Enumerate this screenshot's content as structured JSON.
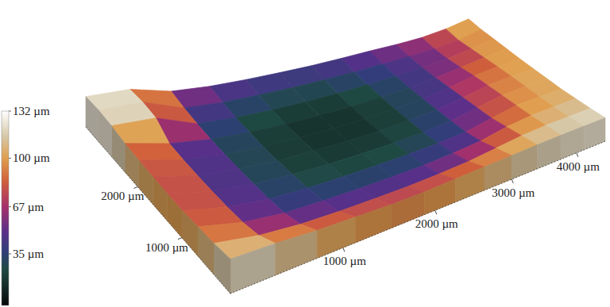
{
  "chart_data": {
    "type": "surface",
    "x": [
      0,
      375,
      750,
      1125,
      1500,
      1875,
      2250,
      2625,
      3000,
      3375,
      3750,
      4125,
      4500
    ],
    "y": [
      0,
      330,
      660,
      990,
      1320,
      1650,
      1980,
      2310,
      2640,
      2970,
      3300
    ],
    "z": [
      [
        120,
        115,
        105,
        100,
        95,
        95,
        100,
        105,
        110,
        115,
        118,
        120,
        122
      ],
      [
        110,
        80,
        65,
        60,
        58,
        58,
        62,
        70,
        85,
        100,
        108,
        112,
        115
      ],
      [
        105,
        65,
        45,
        40,
        38,
        38,
        40,
        48,
        60,
        85,
        100,
        105,
        110
      ],
      [
        100,
        60,
        38,
        30,
        28,
        28,
        30,
        35,
        45,
        70,
        95,
        100,
        105
      ],
      [
        100,
        58,
        35,
        25,
        20,
        20,
        22,
        28,
        40,
        65,
        90,
        100,
        105
      ],
      [
        102,
        58,
        35,
        22,
        18,
        16,
        18,
        25,
        38,
        60,
        85,
        98,
        105
      ],
      [
        105,
        60,
        35,
        22,
        16,
        14,
        16,
        24,
        35,
        55,
        80,
        95,
        105
      ],
      [
        110,
        65,
        38,
        25,
        18,
        16,
        18,
        25,
        35,
        50,
        70,
        90,
        108
      ],
      [
        120,
        110,
        45,
        30,
        24,
        22,
        24,
        30,
        38,
        48,
        62,
        85,
        110
      ],
      [
        125,
        118,
        55,
        40,
        35,
        32,
        34,
        38,
        45,
        52,
        62,
        80,
        112
      ],
      [
        122,
        115,
        70,
        55,
        50,
        48,
        48,
        52,
        58,
        62,
        70,
        90,
        120
      ]
    ],
    "xlim": [
      0,
      4500
    ],
    "ylim": [
      0,
      3300
    ],
    "xticks": [
      {
        "value": 1000,
        "label": "1000 µm"
      },
      {
        "value": 2000,
        "label": "2000 µm"
      },
      {
        "value": 3000,
        "label": "3000 µm"
      },
      {
        "value": 4000,
        "label": "4000 µm"
      }
    ],
    "yticks": [
      {
        "value": 1000,
        "label": "1000 µm"
      },
      {
        "value": 2000,
        "label": "2000 µm"
      }
    ],
    "colorbar": {
      "range": [
        0,
        132
      ],
      "ticks": [
        {
          "value": 35,
          "label": "35 µm"
        },
        {
          "value": 67,
          "label": "67 µm"
        },
        {
          "value": 100,
          "label": "100 µm"
        },
        {
          "value": 132,
          "label": "132 µm"
        }
      ]
    }
  }
}
